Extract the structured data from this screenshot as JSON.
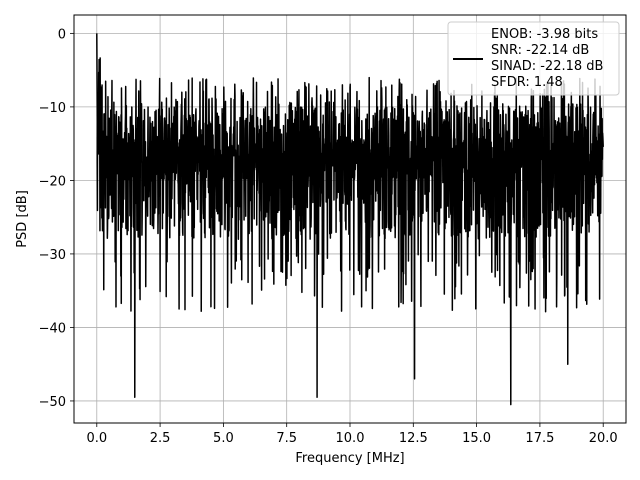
{
  "chart_data": {
    "type": "line",
    "title": "",
    "xlabel": "Frequency [MHz]",
    "ylabel": "PSD [dB]",
    "xlim": [
      -0.9,
      20.9
    ],
    "ylim": [
      -53,
      2.5
    ],
    "xticks": [
      0.0,
      2.5,
      5.0,
      7.5,
      10.0,
      12.5,
      15.0,
      17.5,
      20.0
    ],
    "xtick_labels": [
      "0.0",
      "2.5",
      "5.0",
      "7.5",
      "10.0",
      "12.5",
      "15.0",
      "17.5",
      "20.0"
    ],
    "yticks": [
      0,
      -10,
      -20,
      -30,
      -40,
      -50
    ],
    "ytick_labels": [
      "0",
      "−10",
      "−20",
      "−30",
      "−40",
      "−50"
    ],
    "grid": true,
    "legend_placement": "upper-right",
    "line_color": "#000000",
    "series": [
      {
        "description": "Noisy PSD spectrum from 0 to 20 MHz, values mostly between -30 and -10 dB with peak near 0 dB at 0 MHz",
        "x_range": [
          0,
          20
        ],
        "peak": {
          "x": 0.0,
          "y": 0
        },
        "typical_range": [
          -30,
          -10
        ],
        "notable_minima": [
          {
            "x": 1.5,
            "y": -49.5
          },
          {
            "x": 8.7,
            "y": -49.5
          },
          {
            "x": 16.35,
            "y": -50.5
          },
          {
            "x": 12.55,
            "y": -47
          },
          {
            "x": 18.6,
            "y": -45
          }
        ]
      }
    ],
    "legend_lines": [
      "ENOB: -3.98 bits",
      "SNR: -22.14 dB",
      "SINAD: -22.18 dB",
      "SFDR: 1.48"
    ]
  }
}
